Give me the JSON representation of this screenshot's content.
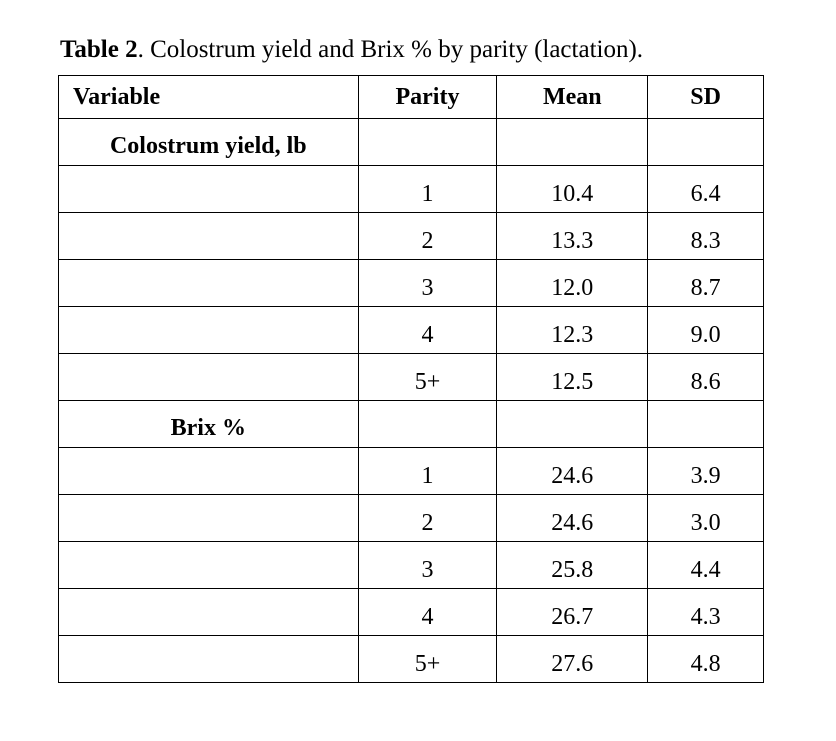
{
  "caption": {
    "label": "Table 2",
    "text": ". Colostrum yield and Brix % by parity (lactation)."
  },
  "table": {
    "columns": [
      "Variable",
      "Parity",
      "Mean",
      "SD"
    ],
    "sections": [
      {
        "title": "Colostrum yield, lb",
        "rows": [
          [
            "1",
            "10.4",
            "6.4"
          ],
          [
            "2",
            "13.3",
            "8.3"
          ],
          [
            "3",
            "12.0",
            "8.7"
          ],
          [
            "4",
            "12.3",
            "9.0"
          ],
          [
            "5+",
            "12.5",
            "8.6"
          ]
        ]
      },
      {
        "title": "Brix %",
        "rows": [
          [
            "1",
            "24.6",
            "3.9"
          ],
          [
            "2",
            "24.6",
            "3.0"
          ],
          [
            "3",
            "25.8",
            "4.4"
          ],
          [
            "4",
            "26.7",
            "4.3"
          ],
          [
            "5+",
            "27.6",
            "4.8"
          ]
        ]
      }
    ]
  }
}
